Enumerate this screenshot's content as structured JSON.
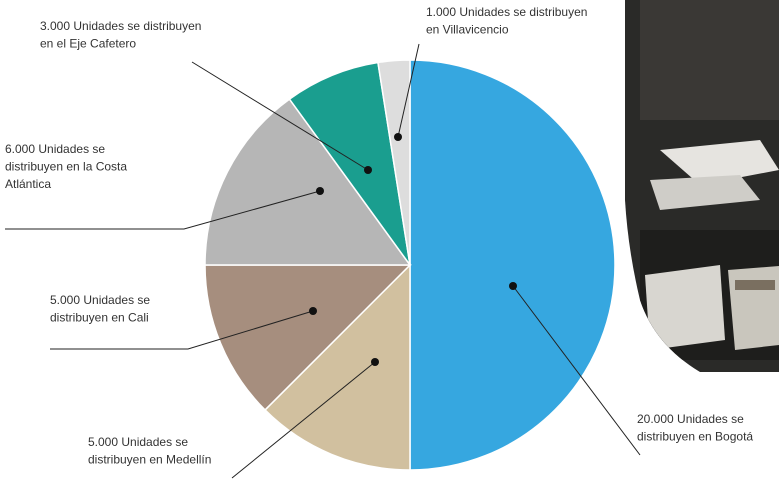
{
  "chart_data": {
    "type": "pie",
    "values": [
      20000,
      5000,
      5000,
      6000,
      3000,
      1000
    ],
    "value_labels": [
      [
        "20.000 Unidades se",
        "distribuyen en Bogotá"
      ],
      [
        "5.000 Unidades se",
        "distribuyen en Medellín"
      ],
      [
        "5.000 Unidades se",
        "distribuyen en Cali"
      ],
      [
        "6.000 Unidades se",
        "distribuyen en la Costa",
        "Atlántica"
      ],
      [
        "3.000 Unidades se distribuyen",
        "en el Eje Cafetero"
      ],
      [
        "1.000 Unidades se distribuyen",
        "en Villavicencio"
      ]
    ],
    "colors": [
      "#36a7e0",
      "#d1c09f",
      "#a68e7e",
      "#b6b6b6",
      "#1a9e8f",
      "#dddddd"
    ]
  }
}
